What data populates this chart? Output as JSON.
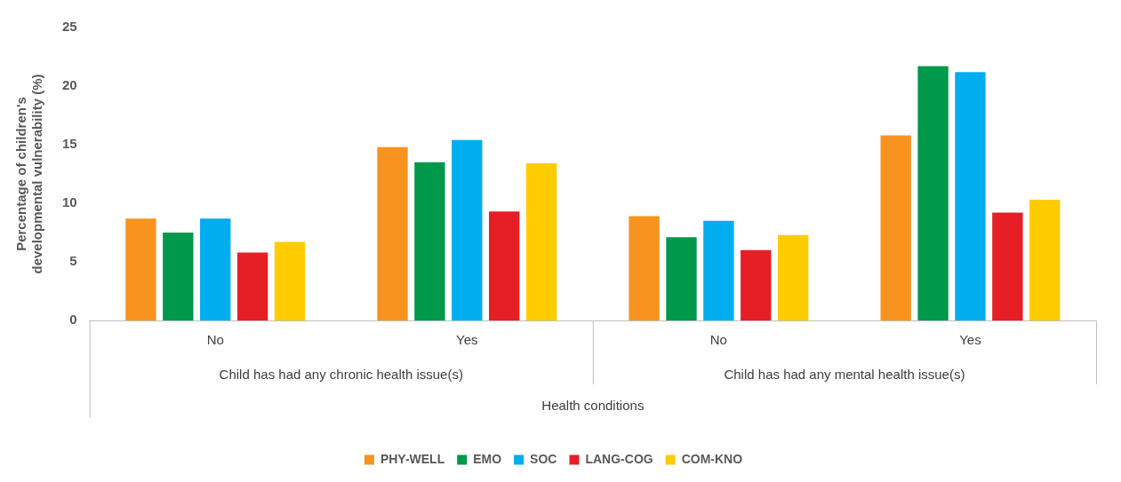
{
  "chart_data": {
    "type": "bar",
    "xlabel": "Health conditions",
    "ylabel": "Percentage of children's developmental vulnerability (%)",
    "categories": [
      "No",
      "Yes",
      "No",
      "Yes"
    ],
    "annotations": [
      "Child has had any chronic health issue(s)",
      "Child has had any mental health issue(s)"
    ],
    "series": [
      {
        "name": "PHY-WELL",
        "color": "#f7931e",
        "values": [
          8.7,
          14.8,
          8.9,
          15.8
        ]
      },
      {
        "name": "EMO",
        "color": "#00984a",
        "values": [
          7.5,
          13.5,
          7.1,
          21.7
        ]
      },
      {
        "name": "SOC",
        "color": "#00adef",
        "values": [
          8.7,
          15.4,
          8.5,
          21.2
        ]
      },
      {
        "name": "LANG-COG",
        "color": "#e51f25",
        "values": [
          5.8,
          9.3,
          6.0,
          9.2
        ]
      },
      {
        "name": "COM-KNO",
        "color": "#ffcc00",
        "values": [
          6.7,
          13.4,
          7.3,
          10.3
        ]
      }
    ],
    "ylim": [
      0,
      25
    ],
    "yticks": [
      0,
      5,
      10,
      15,
      20,
      25
    ],
    "grid": false,
    "legend": "bottom"
  }
}
